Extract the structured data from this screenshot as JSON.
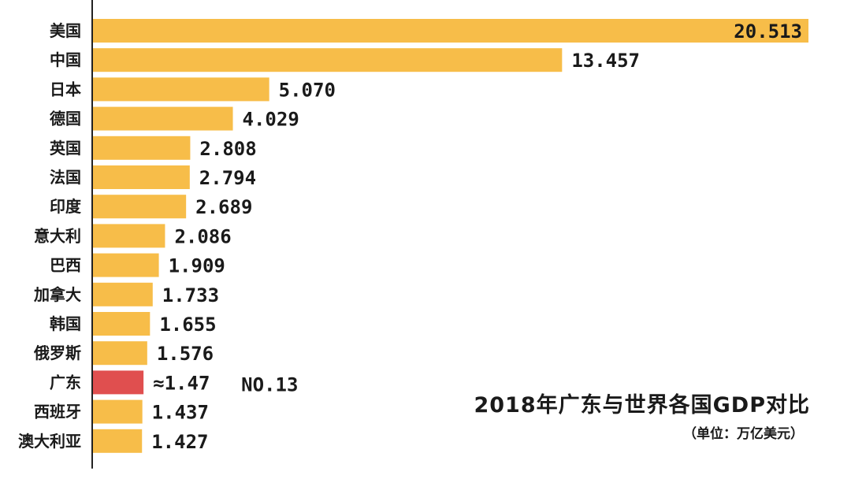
{
  "chart_data": {
    "type": "bar",
    "orientation": "horizontal",
    "title": "2018年广东与世界各国GDP对比",
    "subtitle": "（单位：万亿美元）",
    "categories": [
      "美国",
      "中国",
      "日本",
      "德国",
      "英国",
      "法国",
      "印度",
      "意大利",
      "巴西",
      "加拿大",
      "韩国",
      "俄罗斯",
      "广东",
      "西班牙",
      "澳大利亚"
    ],
    "values": [
      20.513,
      13.457,
      5.07,
      4.029,
      2.808,
      2.794,
      2.689,
      2.086,
      1.909,
      1.733,
      1.655,
      1.576,
      1.47,
      1.437,
      1.427
    ],
    "value_labels": [
      "20.513",
      "13.457",
      "5.070",
      "4.029",
      "2.808",
      "2.794",
      "2.689",
      "2.086",
      "1.909",
      "1.733",
      "1.655",
      "1.576",
      "≈1.47",
      "1.437",
      "1.427"
    ],
    "highlight": {
      "category": "广东",
      "annotation": "NO.13"
    },
    "colors": {
      "bar": "#F7BD49",
      "highlight": "#E04F4F",
      "text": "#1a1a1a",
      "axis": "#222222"
    },
    "xlim": [
      0,
      20.513
    ]
  }
}
